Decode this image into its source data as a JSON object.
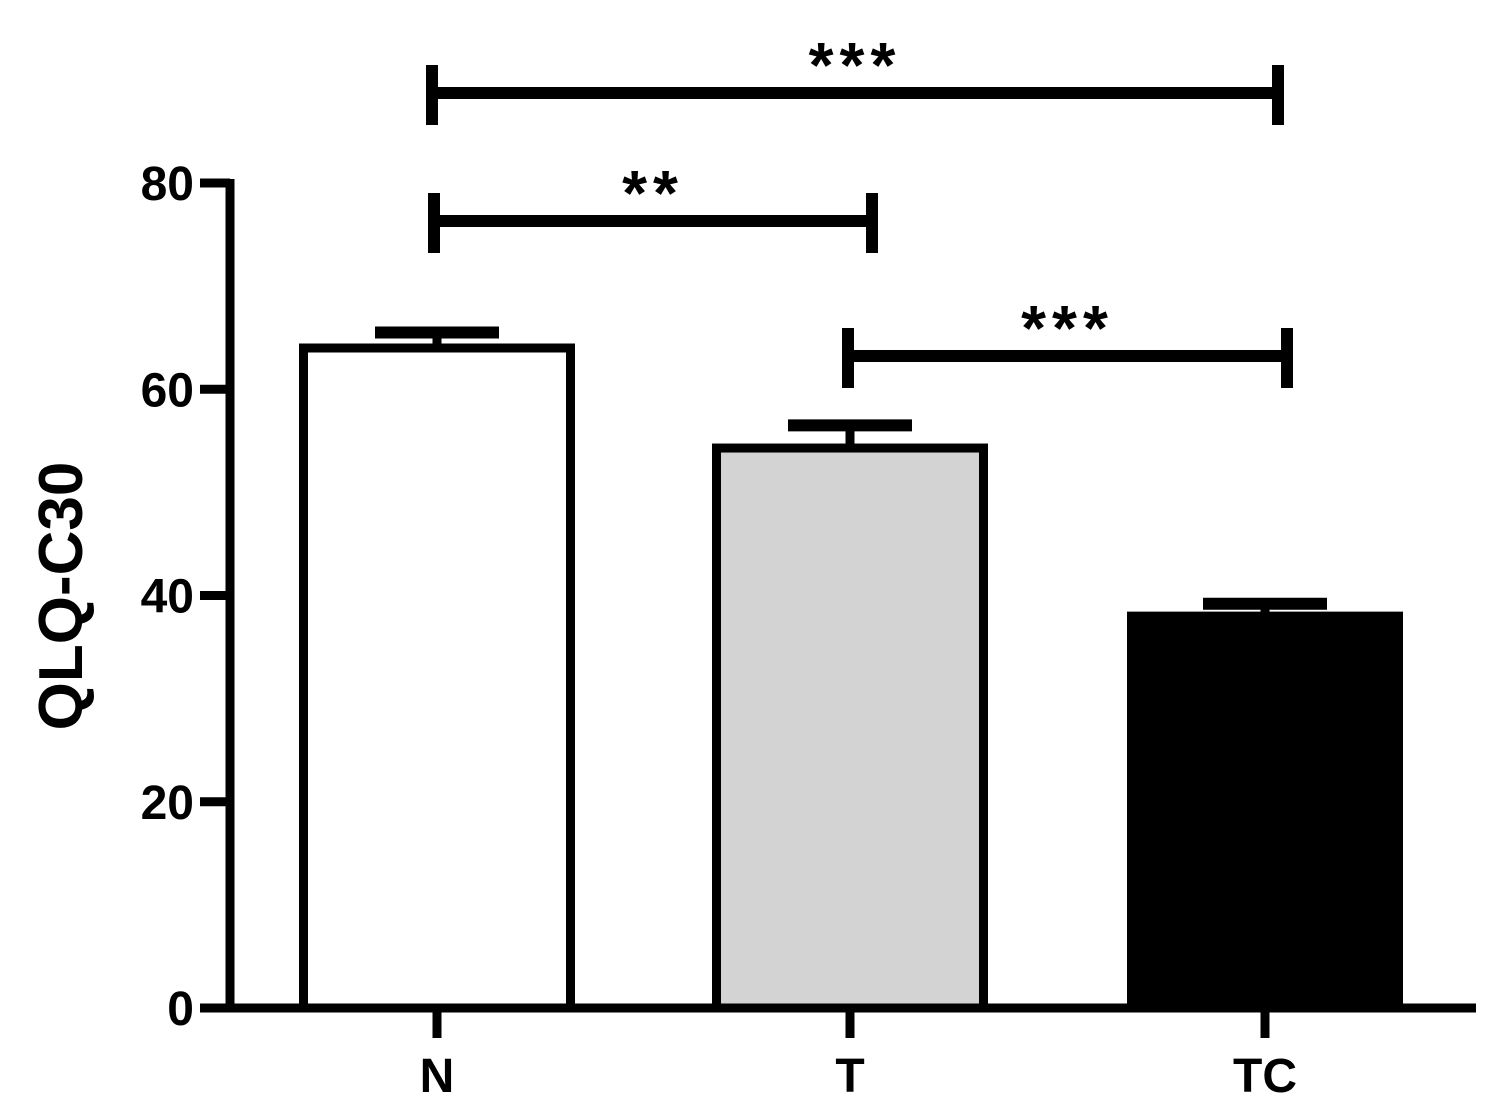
{
  "chart_data": {
    "type": "bar",
    "ylabel": "QLQ-C30",
    "xlabel": "",
    "categories": [
      "N",
      "T",
      "TC"
    ],
    "values": [
      64,
      54.3,
      38
    ],
    "errors": [
      1.5,
      2.2,
      1.2
    ],
    "fills": [
      "#ffffff",
      "#d3d3d3",
      "#000000"
    ],
    "ylim": [
      0,
      80
    ],
    "yticks": [
      0,
      20,
      40,
      60,
      80
    ],
    "grid": false,
    "significance": [
      {
        "from": 0,
        "to": 1,
        "label": "**"
      },
      {
        "from": 1,
        "to": 2,
        "label": "***"
      },
      {
        "from": 0,
        "to": 2,
        "label": "***"
      }
    ]
  }
}
